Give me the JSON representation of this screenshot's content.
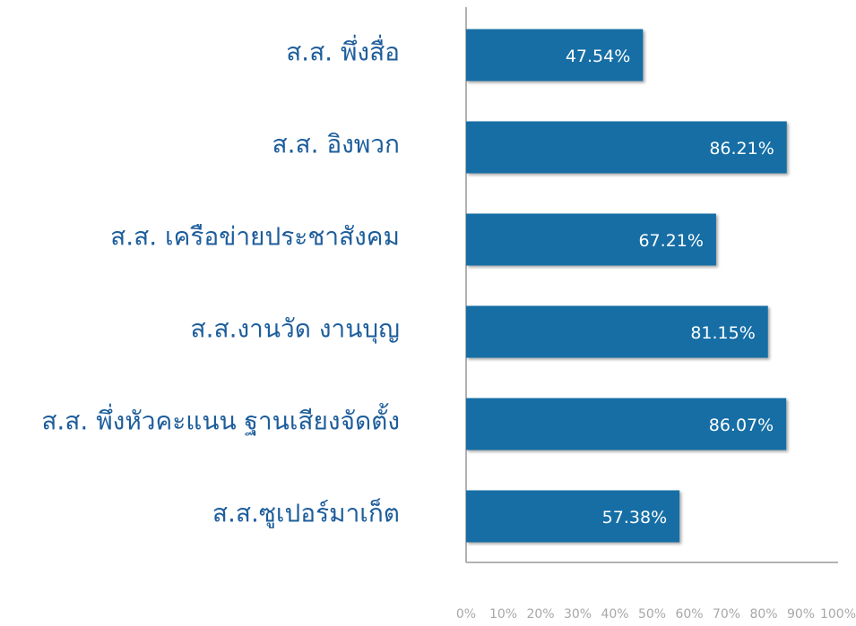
{
  "chart_data": {
    "type": "hbar",
    "categories": [
      "ส.ส. พึ่งสื่อ",
      "ส.ส. อิงพวก",
      "ส.ส. เครือข่ายประชาสังคม",
      "ส.ส.งานวัด งานบุญ",
      "ส.ส. พึ่งหัวคะแนน ฐานเสียงจัดตั้ง",
      "ส.ส.ซูเปอร์มาเก็ต"
    ],
    "values": [
      47.54,
      86.21,
      67.21,
      81.15,
      86.07,
      57.38
    ],
    "value_labels": [
      "47.54%",
      "86.21%",
      "67.21%",
      "81.15%",
      "86.07%",
      "57.38%"
    ],
    "color": "#136ea5",
    "xlim": [
      0,
      100
    ],
    "xticks": [
      {
        "value": 0,
        "label": "0%"
      },
      {
        "value": 10,
        "label": "10%"
      },
      {
        "value": 20,
        "label": "20%"
      },
      {
        "value": 30,
        "label": "30%"
      },
      {
        "value": 40,
        "label": "40%"
      },
      {
        "value": 50,
        "label": "50%"
      },
      {
        "value": 60,
        "label": "60%"
      },
      {
        "value": 70,
        "label": "70%"
      },
      {
        "value": 80,
        "label": "80%"
      },
      {
        "value": 90,
        "label": "90%"
      },
      {
        "value": 100,
        "label": "100%"
      }
    ],
    "grid": false
  }
}
